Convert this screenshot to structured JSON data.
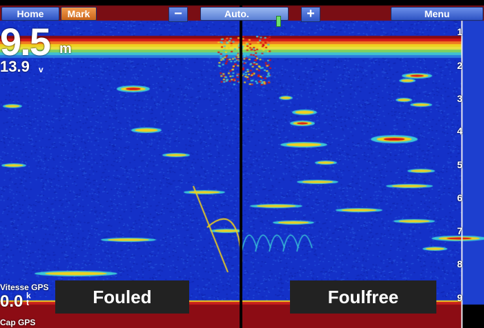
{
  "toolbar": {
    "home_label": "Home",
    "mark_label": "Mark",
    "minus_label": "−",
    "auto_label": "Auto.",
    "plus_label": "+",
    "menu_label": "Menu"
  },
  "readouts": {
    "depth_value": "9.5",
    "depth_unit": "m",
    "voltage_value": "13.9",
    "voltage_unit": "v",
    "speed_label": "Vitesse GPS",
    "speed_value": "0.0",
    "speed_unit": "k\nt",
    "heading_label": "Cap GPS"
  },
  "overlays": {
    "left_label": "Fouled",
    "right_label": "Foulfree"
  },
  "depth_scale": [
    "1",
    "2",
    "3",
    "4",
    "5",
    "6",
    "7",
    "8",
    "9"
  ],
  "colors": {
    "water": "#1431c8",
    "bottom": "#8c0c14",
    "surface_band": "#e8c21a",
    "target_strong": "#d81414",
    "target_mid": "#f0d01e",
    "target_weak": "#3cc8d8"
  }
}
